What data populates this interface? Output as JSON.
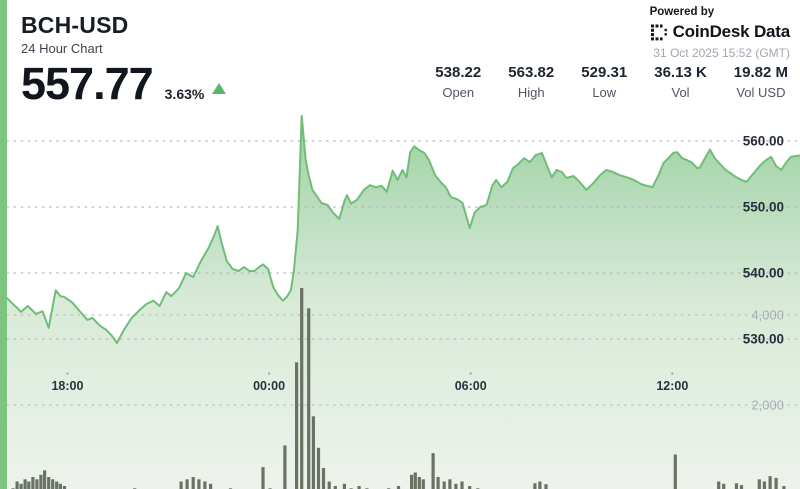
{
  "header": {
    "symbol": "BCH-USD",
    "subtitle": "24 Hour Chart",
    "price": "557.77",
    "change_pct": "3.63%",
    "stats": [
      {
        "value": "538.22",
        "label": "Open"
      },
      {
        "value": "563.82",
        "label": "High"
      },
      {
        "value": "529.31",
        "label": "Low"
      },
      {
        "value": "36.13 K",
        "label": "Vol"
      },
      {
        "value": "19.82 M",
        "label": "Vol USD"
      }
    ],
    "powered_by": "Powered by",
    "brand": "CoinDesk Data",
    "timestamp": "31 Oct 2025 15:52 (GMT)"
  },
  "colors": {
    "accent_stripe": "#7cc47f",
    "up_green": "#57b968",
    "line": "#70bd78",
    "fill_top": "#9bd0a1",
    "fill_mid": "#d8ead8",
    "fill_bottom": "#edf3ec",
    "volume_bar": "#5e6759",
    "grid": "#b5bac1",
    "price_label": "#272d3a",
    "volume_label": "#a6acb3",
    "x_label": "#2b313e",
    "tick_dot": "#9aa0a7"
  },
  "chart_data": {
    "type": "area",
    "title": "BCH-USD 24 Hour Chart",
    "x_unit": "hour-of-day (values > 24 are the following day)",
    "x_range": [
      16.2,
      39.8
    ],
    "x_ticks": [
      {
        "t": 18,
        "label": "18:00"
      },
      {
        "t": 24,
        "label": "00:00"
      },
      {
        "t": 30,
        "label": "06:00"
      },
      {
        "t": 36,
        "label": "12:00"
      }
    ],
    "price_axis": {
      "side": "right",
      "ticks": [
        560,
        550,
        540,
        530
      ],
      "labels": [
        "560.00",
        "550.00",
        "540.00",
        "530.00"
      ]
    },
    "volume_axis": {
      "side": "right",
      "ticks": [
        4000,
        2000
      ],
      "labels": [
        "4,000",
        "2,000"
      ]
    },
    "grid": "dotted-horizontal",
    "series": [
      {
        "name": "price",
        "points": [
          [
            16.1,
            536.7
          ],
          [
            16.62,
            534.1
          ],
          [
            16.82,
            535.0
          ],
          [
            17.06,
            533.8
          ],
          [
            17.26,
            534.2
          ],
          [
            17.44,
            531.7
          ],
          [
            17.65,
            537.4
          ],
          [
            17.79,
            536.5
          ],
          [
            17.9,
            536.4
          ],
          [
            18.15,
            535.5
          ],
          [
            18.38,
            534.1
          ],
          [
            18.59,
            532.9
          ],
          [
            18.74,
            533.2
          ],
          [
            18.97,
            532.0
          ],
          [
            19.15,
            531.4
          ],
          [
            19.32,
            530.5
          ],
          [
            19.47,
            529.4
          ],
          [
            19.68,
            531.4
          ],
          [
            19.91,
            533.2
          ],
          [
            20.15,
            534.4
          ],
          [
            20.35,
            535.3
          ],
          [
            20.56,
            535.8
          ],
          [
            20.74,
            535.0
          ],
          [
            20.94,
            537.1
          ],
          [
            21.09,
            536.5
          ],
          [
            21.32,
            537.7
          ],
          [
            21.53,
            540.0
          ],
          [
            21.74,
            539.4
          ],
          [
            21.97,
            541.8
          ],
          [
            22.2,
            543.8
          ],
          [
            22.35,
            545.5
          ],
          [
            22.47,
            547.1
          ],
          [
            22.59,
            544.5
          ],
          [
            22.74,
            541.8
          ],
          [
            22.91,
            540.6
          ],
          [
            23.09,
            540.3
          ],
          [
            23.26,
            540.9
          ],
          [
            23.41,
            540.3
          ],
          [
            23.56,
            540.3
          ],
          [
            23.7,
            540.9
          ],
          [
            23.82,
            541.3
          ],
          [
            23.97,
            540.6
          ],
          [
            24.12,
            537.9
          ],
          [
            24.26,
            536.7
          ],
          [
            24.41,
            535.8
          ],
          [
            24.53,
            536.4
          ],
          [
            24.65,
            537.4
          ],
          [
            24.74,
            540.5
          ],
          [
            24.85,
            546.5
          ],
          [
            24.97,
            563.8
          ],
          [
            25.09,
            557.1
          ],
          [
            25.18,
            554.8
          ],
          [
            25.29,
            552.6
          ],
          [
            25.44,
            551.5
          ],
          [
            25.56,
            550.6
          ],
          [
            25.74,
            550.3
          ],
          [
            25.91,
            549.1
          ],
          [
            26.09,
            548.2
          ],
          [
            26.24,
            550.9
          ],
          [
            26.32,
            551.8
          ],
          [
            26.44,
            550.5
          ],
          [
            26.62,
            551.1
          ],
          [
            26.82,
            552.6
          ],
          [
            27.0,
            553.3
          ],
          [
            27.18,
            553.0
          ],
          [
            27.35,
            553.2
          ],
          [
            27.5,
            552.3
          ],
          [
            27.68,
            555.5
          ],
          [
            27.82,
            554.1
          ],
          [
            27.97,
            555.6
          ],
          [
            28.09,
            554.5
          ],
          [
            28.2,
            558.3
          ],
          [
            28.32,
            559.2
          ],
          [
            28.47,
            558.6
          ],
          [
            28.62,
            558.2
          ],
          [
            28.76,
            557.1
          ],
          [
            28.94,
            554.8
          ],
          [
            29.12,
            553.7
          ],
          [
            29.26,
            553.0
          ],
          [
            29.41,
            551.5
          ],
          [
            29.59,
            551.2
          ],
          [
            29.76,
            550.6
          ],
          [
            29.97,
            546.8
          ],
          [
            30.12,
            549.2
          ],
          [
            30.29,
            550.0
          ],
          [
            30.47,
            550.3
          ],
          [
            30.65,
            553.3
          ],
          [
            30.76,
            554.1
          ],
          [
            30.91,
            553.0
          ],
          [
            31.09,
            553.8
          ],
          [
            31.26,
            555.9
          ],
          [
            31.41,
            556.5
          ],
          [
            31.59,
            557.4
          ],
          [
            31.76,
            556.8
          ],
          [
            31.94,
            557.9
          ],
          [
            32.12,
            558.2
          ],
          [
            32.26,
            556.4
          ],
          [
            32.41,
            554.5
          ],
          [
            32.56,
            555.6
          ],
          [
            32.71,
            555.3
          ],
          [
            32.85,
            554.4
          ],
          [
            33.06,
            554.7
          ],
          [
            33.24,
            553.8
          ],
          [
            33.44,
            552.6
          ],
          [
            33.65,
            553.6
          ],
          [
            33.85,
            554.8
          ],
          [
            34.03,
            555.6
          ],
          [
            34.24,
            555.3
          ],
          [
            34.44,
            554.8
          ],
          [
            34.65,
            554.5
          ],
          [
            34.85,
            554.1
          ],
          [
            35.06,
            553.5
          ],
          [
            35.26,
            553.2
          ],
          [
            35.41,
            553.0
          ],
          [
            35.59,
            554.8
          ],
          [
            35.74,
            556.7
          ],
          [
            35.88,
            557.4
          ],
          [
            36.03,
            558.2
          ],
          [
            36.15,
            558.3
          ],
          [
            36.29,
            557.4
          ],
          [
            36.44,
            557.1
          ],
          [
            36.59,
            556.7
          ],
          [
            36.74,
            555.9
          ],
          [
            36.82,
            556.0
          ],
          [
            36.94,
            557.1
          ],
          [
            37.12,
            558.7
          ],
          [
            37.26,
            557.4
          ],
          [
            37.44,
            556.4
          ],
          [
            37.59,
            555.6
          ],
          [
            37.76,
            555.0
          ],
          [
            37.91,
            554.5
          ],
          [
            38.06,
            554.1
          ],
          [
            38.21,
            553.8
          ],
          [
            38.35,
            554.7
          ],
          [
            38.5,
            555.6
          ],
          [
            38.65,
            556.5
          ],
          [
            38.79,
            557.1
          ],
          [
            38.94,
            557.6
          ],
          [
            39.09,
            556.2
          ],
          [
            39.24,
            555.6
          ],
          [
            39.38,
            556.7
          ],
          [
            39.53,
            557.6
          ],
          [
            39.8,
            557.8
          ]
        ]
      }
    ],
    "volume_bars": [
      [
        16.38,
        150
      ],
      [
        16.5,
        300
      ],
      [
        16.62,
        250
      ],
      [
        16.74,
        350
      ],
      [
        16.85,
        300
      ],
      [
        16.97,
        400
      ],
      [
        17.09,
        350
      ],
      [
        17.21,
        450
      ],
      [
        17.32,
        550
      ],
      [
        17.44,
        400
      ],
      [
        17.56,
        350
      ],
      [
        17.68,
        300
      ],
      [
        17.79,
        250
      ],
      [
        17.91,
        200
      ],
      [
        19.62,
        100
      ],
      [
        19.79,
        120
      ],
      [
        20.0,
        150
      ],
      [
        20.2,
        100
      ],
      [
        21.38,
        300
      ],
      [
        21.56,
        350
      ],
      [
        21.74,
        400
      ],
      [
        21.91,
        350
      ],
      [
        22.09,
        300
      ],
      [
        22.26,
        250
      ],
      [
        22.85,
        150
      ],
      [
        23.32,
        100
      ],
      [
        23.82,
        620
      ],
      [
        24.03,
        150
      ],
      [
        24.47,
        1100
      ],
      [
        24.82,
        2950
      ],
      [
        24.97,
        4600
      ],
      [
        25.18,
        4150
      ],
      [
        25.32,
        1750
      ],
      [
        25.47,
        1050
      ],
      [
        25.62,
        600
      ],
      [
        25.79,
        300
      ],
      [
        25.97,
        200
      ],
      [
        26.24,
        250
      ],
      [
        26.44,
        150
      ],
      [
        26.68,
        200
      ],
      [
        26.91,
        150
      ],
      [
        27.15,
        100
      ],
      [
        27.56,
        150
      ],
      [
        27.85,
        200
      ],
      [
        28.24,
        450
      ],
      [
        28.35,
        500
      ],
      [
        28.47,
        400
      ],
      [
        28.59,
        350
      ],
      [
        28.88,
        930
      ],
      [
        29.03,
        400
      ],
      [
        29.21,
        300
      ],
      [
        29.38,
        350
      ],
      [
        29.56,
        250
      ],
      [
        29.74,
        300
      ],
      [
        29.97,
        200
      ],
      [
        30.21,
        150
      ],
      [
        30.5,
        130
      ],
      [
        30.79,
        120
      ],
      [
        31.09,
        130
      ],
      [
        31.38,
        110
      ],
      [
        31.91,
        260
      ],
      [
        32.06,
        300
      ],
      [
        32.24,
        240
      ],
      [
        32.56,
        120
      ],
      [
        33.15,
        100
      ],
      [
        33.74,
        110
      ],
      [
        34.53,
        120
      ],
      [
        35.06,
        100
      ],
      [
        35.5,
        110
      ],
      [
        36.09,
        900
      ],
      [
        36.53,
        130
      ],
      [
        36.97,
        120
      ],
      [
        37.38,
        300
      ],
      [
        37.53,
        250
      ],
      [
        37.91,
        260
      ],
      [
        38.06,
        220
      ],
      [
        38.59,
        350
      ],
      [
        38.74,
        300
      ],
      [
        38.91,
        420
      ],
      [
        39.09,
        380
      ],
      [
        39.32,
        200
      ]
    ]
  }
}
